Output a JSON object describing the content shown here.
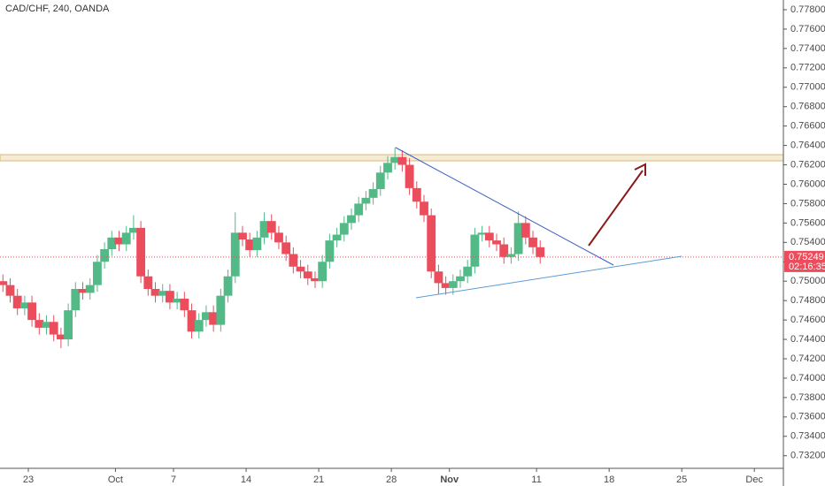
{
  "chart_data": {
    "type": "candlestick",
    "title": "CAD/CHF, 240, OANDA",
    "x": [
      -1.75,
      -1.25,
      -0.75,
      -0.25,
      0.25,
      0.75,
      1.25,
      1.75,
      2.25,
      2.75,
      3.25,
      3.75,
      4.25,
      4.75,
      5.25,
      5.75,
      6.25,
      6.75,
      7.25,
      7.75,
      8.25,
      8.75,
      9.25,
      9.75,
      10.25,
      10.75,
      11.25,
      11.75,
      12.25,
      12.75,
      13.25,
      13.75,
      14.25,
      14.75,
      15.25,
      15.75,
      16.25,
      16.75,
      17.25,
      17.75,
      18.25,
      18.75,
      19.25,
      19.75,
      20.25,
      20.75,
      21.25,
      21.75,
      22.25,
      22.75,
      23.25,
      23.75,
      24.25,
      24.75,
      25.25,
      25.75,
      26.25,
      26.75,
      27.25,
      27.75,
      28.25,
      28.75,
      29.25,
      29.75,
      30.25,
      30.75,
      31.25,
      31.75,
      32.25,
      32.75,
      33.25,
      33.75,
      34.25,
      34.75,
      35.25
    ],
    "open": [
      0.75,
      0.7496,
      0.7485,
      0.7472,
      0.7478,
      0.746,
      0.7452,
      0.7458,
      0.7445,
      0.744,
      0.747,
      0.7492,
      0.7488,
      0.7496,
      0.752,
      0.7533,
      0.7545,
      0.7538,
      0.755,
      0.7555,
      0.7505,
      0.7492,
      0.7485,
      0.749,
      0.7478,
      0.7482,
      0.747,
      0.7448,
      0.746,
      0.7468,
      0.7455,
      0.7485,
      0.7505,
      0.755,
      0.7543,
      0.7532,
      0.7545,
      0.7562,
      0.755,
      0.754,
      0.7528,
      0.7515,
      0.751,
      0.7503,
      0.75,
      0.752,
      0.7542,
      0.7548,
      0.756,
      0.7568,
      0.758,
      0.7586,
      0.7595,
      0.7612,
      0.7622,
      0.7628,
      0.762,
      0.7596,
      0.7582,
      0.7568,
      0.751,
      0.7498,
      0.7493,
      0.75,
      0.7505,
      0.7515,
      0.7548,
      0.755,
      0.7542,
      0.7538,
      0.7525,
      0.7528,
      0.756,
      0.7545,
      0.7535
    ],
    "high": [
      0.7507,
      0.7503,
      0.7492,
      0.7485,
      0.7485,
      0.7467,
      0.7465,
      0.7465,
      0.7452,
      0.7477,
      0.7499,
      0.7499,
      0.7503,
      0.7527,
      0.754,
      0.7552,
      0.7552,
      0.7557,
      0.7568,
      0.7562,
      0.7512,
      0.7499,
      0.7497,
      0.7497,
      0.7489,
      0.7489,
      0.7477,
      0.7467,
      0.7475,
      0.7475,
      0.7492,
      0.7512,
      0.7571,
      0.7557,
      0.755,
      0.7552,
      0.7571,
      0.7569,
      0.7557,
      0.7547,
      0.7535,
      0.7522,
      0.7517,
      0.751,
      0.7527,
      0.7549,
      0.7555,
      0.7567,
      0.7575,
      0.7587,
      0.7593,
      0.7602,
      0.7619,
      0.7629,
      0.7638,
      0.7635,
      0.7627,
      0.7603,
      0.7589,
      0.7575,
      0.7517,
      0.7505,
      0.7507,
      0.7512,
      0.7522,
      0.7555,
      0.7557,
      0.7557,
      0.7549,
      0.7545,
      0.7535,
      0.7572,
      0.7567,
      0.7552,
      0.7542
    ],
    "low": [
      0.7489,
      0.7478,
      0.7465,
      0.7465,
      0.7453,
      0.7445,
      0.7445,
      0.7438,
      0.7431,
      0.7433,
      0.7463,
      0.7481,
      0.7481,
      0.7489,
      0.7513,
      0.7526,
      0.7531,
      0.7531,
      0.7543,
      0.7498,
      0.7485,
      0.7478,
      0.7478,
      0.7471,
      0.7471,
      0.7463,
      0.7441,
      0.7441,
      0.7453,
      0.7448,
      0.7448,
      0.7478,
      0.7498,
      0.7536,
      0.7525,
      0.7525,
      0.7538,
      0.7543,
      0.7533,
      0.7521,
      0.7508,
      0.7503,
      0.7496,
      0.7493,
      0.7493,
      0.7513,
      0.7535,
      0.7541,
      0.7553,
      0.7561,
      0.7573,
      0.7579,
      0.7588,
      0.7605,
      0.7615,
      0.7613,
      0.7589,
      0.7575,
      0.7561,
      0.7503,
      0.7487,
      0.7486,
      0.7486,
      0.7493,
      0.7498,
      0.7508,
      0.7541,
      0.7535,
      0.7531,
      0.7518,
      0.7518,
      0.7521,
      0.7538,
      0.7528,
      0.7518
    ],
    "close": [
      0.7496,
      0.7485,
      0.7472,
      0.7478,
      0.746,
      0.7452,
      0.7458,
      0.7445,
      0.744,
      0.747,
      0.7492,
      0.7488,
      0.7496,
      0.752,
      0.7533,
      0.7545,
      0.7538,
      0.755,
      0.7555,
      0.7505,
      0.7492,
      0.7485,
      0.749,
      0.7478,
      0.7482,
      0.747,
      0.7448,
      0.746,
      0.7468,
      0.7455,
      0.7485,
      0.7505,
      0.755,
      0.7543,
      0.7532,
      0.7545,
      0.7562,
      0.755,
      0.754,
      0.7528,
      0.7515,
      0.751,
      0.7503,
      0.75,
      0.752,
      0.7542,
      0.7548,
      0.756,
      0.7568,
      0.758,
      0.7586,
      0.7595,
      0.7612,
      0.7622,
      0.7628,
      0.762,
      0.7596,
      0.7582,
      0.7568,
      0.751,
      0.7498,
      0.7493,
      0.75,
      0.7505,
      0.7515,
      0.7548,
      0.755,
      0.7542,
      0.7538,
      0.7525,
      0.7528,
      0.756,
      0.7545,
      0.7535,
      0.7525
    ],
    "up_color": "#53b987",
    "down_color": "#eb4d5c",
    "xlim": [
      -1.95,
      52
    ],
    "xticks": [
      {
        "value": 0,
        "label": "23"
      },
      {
        "value": 6,
        "label": "Oct"
      },
      {
        "value": 10,
        "label": "7"
      },
      {
        "value": 15,
        "label": "14"
      },
      {
        "value": 20,
        "label": "21"
      },
      {
        "value": 25,
        "label": "28"
      },
      {
        "value": 29,
        "label": "Nov"
      },
      {
        "value": 35,
        "label": "11"
      },
      {
        "value": 40,
        "label": "18"
      },
      {
        "value": 45,
        "label": "25"
      },
      {
        "value": 50,
        "label": "Dec"
      }
    ],
    "ylim": [
      0.7307,
      0.779
    ],
    "yticks": [
      {
        "value": 0.778,
        "label": "0.77800"
      },
      {
        "value": 0.776,
        "label": "0.77600"
      },
      {
        "value": 0.774,
        "label": "0.77400"
      },
      {
        "value": 0.772,
        "label": "0.77200"
      },
      {
        "value": 0.77,
        "label": "0.77000"
      },
      {
        "value": 0.768,
        "label": "0.76800"
      },
      {
        "value": 0.766,
        "label": "0.76600"
      },
      {
        "value": 0.764,
        "label": "0.76400"
      },
      {
        "value": 0.762,
        "label": "0.76200"
      },
      {
        "value": 0.76,
        "label": "0.76000"
      },
      {
        "value": 0.758,
        "label": "0.75800"
      },
      {
        "value": 0.756,
        "label": "0.75600"
      },
      {
        "value": 0.754,
        "label": "0.75400"
      },
      {
        "value": 0.752,
        "label": "0.75200"
      },
      {
        "value": 0.75,
        "label": "0.75000"
      },
      {
        "value": 0.748,
        "label": "0.74800"
      },
      {
        "value": 0.746,
        "label": "0.74600"
      },
      {
        "value": 0.744,
        "label": "0.74400"
      },
      {
        "value": 0.742,
        "label": "0.74200"
      },
      {
        "value": 0.74,
        "label": "0.74000"
      },
      {
        "value": 0.738,
        "label": "0.73800"
      },
      {
        "value": 0.736,
        "label": "0.73600"
      },
      {
        "value": 0.734,
        "label": "0.73400"
      },
      {
        "value": 0.732,
        "label": "0.73200"
      }
    ],
    "last_price": 0.75249,
    "countdown": "02:16:35"
  }
}
